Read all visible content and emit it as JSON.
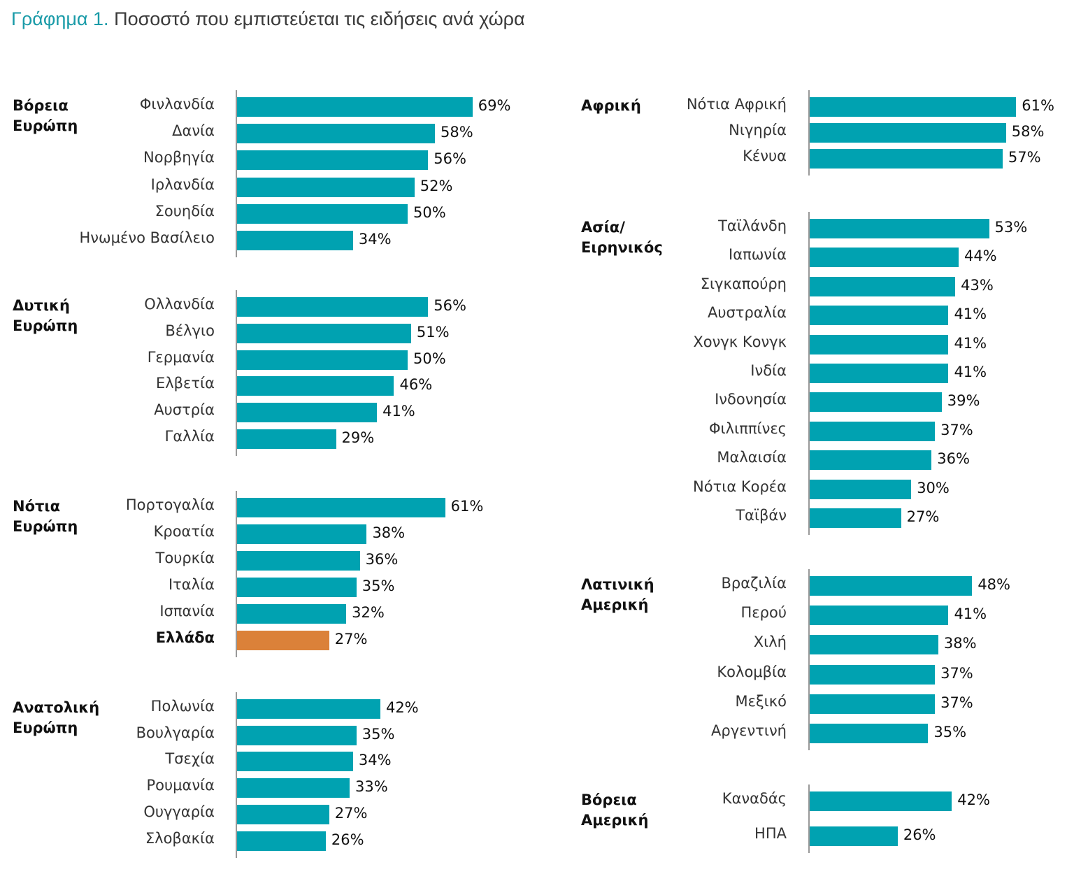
{
  "chart_data": {
    "type": "bar",
    "orientation": "horizontal",
    "title_prefix": "Γράφημα 1.",
    "title": "Ποσοστό που εμπιστεύεται τις ειδήσεις ανά χώρα",
    "unit": "%",
    "colors": {
      "default": "#00a2b1",
      "highlight": "#db8139",
      "title_prefix": "#1a9ba8"
    },
    "grid": false,
    "groups": [
      {
        "name": "Βόρεια Ευρώπη",
        "panel": "left",
        "categories": [
          "Φινλανδία",
          "Δανία",
          "Νορβηγία",
          "Ιρλανδία",
          "Σουηδία",
          "Ηνωμένο Βασίλειο"
        ],
        "values": [
          69,
          58,
          56,
          52,
          50,
          34
        ]
      },
      {
        "name": "Δυτική Ευρώπη",
        "panel": "left",
        "categories": [
          "Ολλανδία",
          "Βέλγιο",
          "Γερμανία",
          "Ελβετία",
          "Αυστρία",
          "Γαλλία"
        ],
        "values": [
          56,
          51,
          50,
          46,
          41,
          29
        ]
      },
      {
        "name": "Νότια Ευρώπη",
        "panel": "left",
        "categories": [
          "Πορτογαλία",
          "Κροατία",
          "Τουρκία",
          "Ιταλία",
          "Ισπανία",
          "Ελλάδα"
        ],
        "values": [
          61,
          38,
          36,
          35,
          32,
          27
        ],
        "highlight": "Ελλάδα"
      },
      {
        "name": "Ανατολική Ευρώπη",
        "panel": "left",
        "categories": [
          "Πολωνία",
          "Βουλγαρία",
          "Τσεχία",
          "Ρουμανία",
          "Ουγγαρία",
          "Σλοβακία"
        ],
        "values": [
          42,
          35,
          34,
          33,
          27,
          26
        ]
      },
      {
        "name": "Αφρική",
        "panel": "right",
        "categories": [
          "Νότια Αφρική",
          "Νιγηρία",
          "Κένυα"
        ],
        "values": [
          61,
          58,
          57
        ]
      },
      {
        "name": "Ασία/ Ειρηνικός",
        "panel": "right",
        "categories": [
          "Ταϊλάνδη",
          "Ιαπωνία",
          "Σιγκαπούρη",
          "Αυστραλία",
          "Χονγκ Κονγκ",
          "Ινδία",
          "Ινδονησία",
          "Φιλιππίνες",
          "Μαλαισία",
          "Νότια Κορέα",
          "Ταϊβάν"
        ],
        "values": [
          53,
          44,
          43,
          41,
          41,
          41,
          39,
          37,
          36,
          30,
          27
        ]
      },
      {
        "name": "Λατινική Αμερική",
        "panel": "right",
        "categories": [
          "Βραζιλία",
          "Περού",
          "Χιλή",
          "Κολομβία",
          "Μεξικό",
          "Αργεντινή"
        ],
        "values": [
          48,
          41,
          38,
          37,
          37,
          35
        ]
      },
      {
        "name": "Βόρεια Αμερική",
        "panel": "right",
        "categories": [
          "Καναδάς",
          "ΗΠΑ"
        ],
        "values": [
          42,
          26
        ]
      }
    ]
  }
}
